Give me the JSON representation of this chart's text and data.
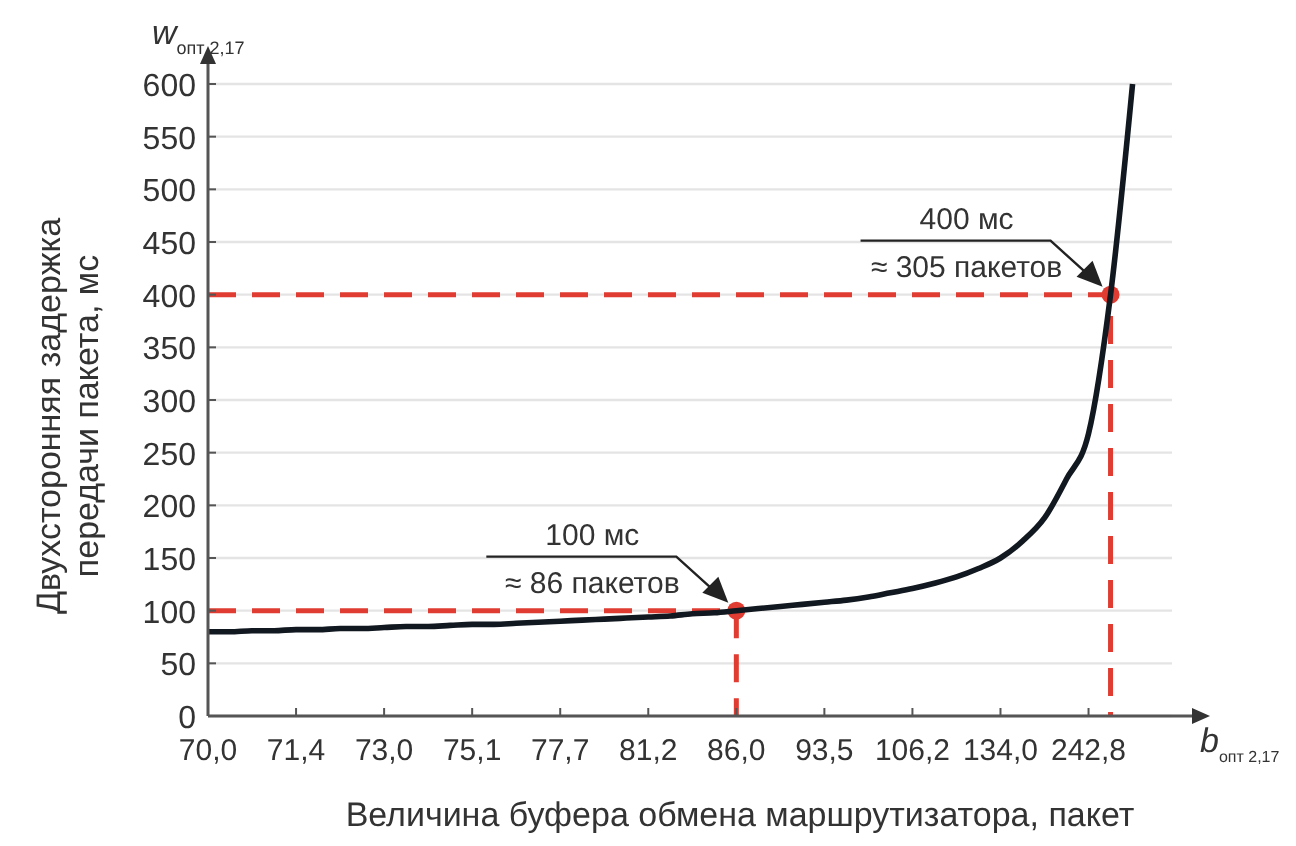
{
  "chart_data": {
    "type": "line",
    "xlabel": "Величина буфера обмена маршрутизатора, пакет",
    "ylabel": "Двухсторонняя задержка\nпередачи пакета, мс",
    "categories": [
      "70,0",
      null,
      null,
      null,
      "71,4",
      null,
      null,
      null,
      "73,0",
      null,
      null,
      null,
      "75,1",
      null,
      null,
      null,
      "77,7",
      null,
      null,
      null,
      "81,2",
      null,
      null,
      null,
      "86,0",
      null,
      null,
      null,
      "93,5",
      null,
      null,
      null,
      "106,2",
      null,
      null,
      null,
      "134,0",
      null,
      null,
      null,
      "242,8",
      null,
      null
    ],
    "ylim": [
      0,
      600
    ],
    "yticks": [
      0,
      50,
      100,
      150,
      200,
      250,
      300,
      350,
      400,
      450,
      500,
      550,
      600
    ],
    "grid": "y",
    "line_style": "solid",
    "marker": "none",
    "series": [
      {
        "color": "#111820",
        "values": [
          80,
          80,
          81,
          81,
          82,
          82,
          83,
          83,
          84,
          85,
          85,
          86,
          87,
          87,
          88,
          89,
          90,
          91,
          92,
          93,
          94,
          95,
          97,
          98,
          100,
          102,
          104,
          106,
          108,
          110,
          113,
          117,
          121,
          126,
          132,
          140,
          150,
          166,
          188,
          225,
          268,
          400,
          600
        ]
      }
    ],
    "ref_lines": [
      {
        "axis": "y",
        "value": 100,
        "color": "#e03c31",
        "line_style": "dashed"
      },
      {
        "axis": "y",
        "value": 400,
        "color": "#e03c31",
        "line_style": "dashed"
      }
    ],
    "annotations": [
      "w$_{опт 2,17}$",
      "b$_{опт 2,17}$",
      {
        "text": "100 мс\n≈ 86 пакетов",
        "y": 100
      },
      {
        "text": "400 мс\n≈ 305 пакетов",
        "y": 400
      }
    ]
  }
}
